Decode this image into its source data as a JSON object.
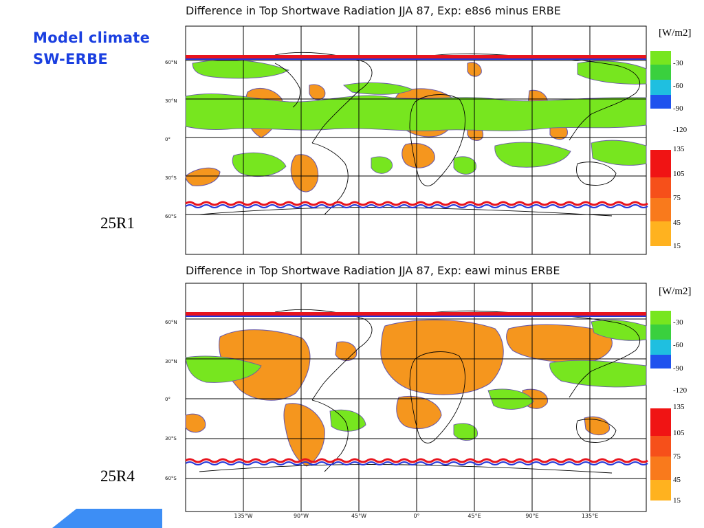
{
  "heading": {
    "line1": "Model climate",
    "line2": "SW-ERBE",
    "color": "#1a3fe0"
  },
  "panels": [
    {
      "title": "Difference in Top Shortwave Radiation  JJA 87, Exp: e8s6 minus ERBE",
      "experiment_label": "25R1",
      "legend_unit": "[W/m2]"
    },
    {
      "title": "Difference in Top Shortwave Radiation  JJA 87, Exp: eawi minus ERBE",
      "experiment_label": "25R4",
      "legend_unit": "[W/m2]"
    }
  ],
  "legend": {
    "negative": [
      {
        "label": "-30",
        "color": "#77e61f"
      },
      {
        "label": "-60",
        "color": "#22cc44"
      },
      {
        "label": "-90",
        "color": "#19b4e8"
      },
      {
        "label": "-120",
        "color": "#1f52ee"
      }
    ],
    "positive": [
      {
        "label": "135",
        "color": "#f01414"
      },
      {
        "label": "105",
        "color": "#f6501a"
      },
      {
        "label": "75",
        "color": "#f97a1c"
      },
      {
        "label": "45",
        "color": "#fb981e"
      },
      {
        "label": "15",
        "color": "#ffb21f"
      }
    ]
  },
  "latitude_labels": [
    "60°N",
    "30°N",
    "0°",
    "30°S",
    "60°S"
  ],
  "longitude_labels": [
    "135°W",
    "90°W",
    "45°W",
    "0°",
    "45°E",
    "90°E",
    "135°E"
  ],
  "colors": {
    "positive_fill": "#f5961e",
    "negative_fill": "#77e61f",
    "contour": "#6a5aa8",
    "band_red": "#e8141e",
    "band_blue": "#2436d8"
  }
}
